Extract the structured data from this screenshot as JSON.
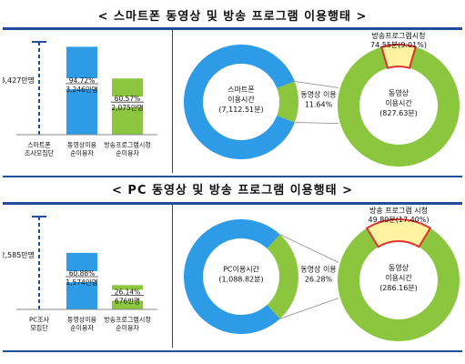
{
  "sections": [
    {
      "title": "< 스마트폰 동영상 및 방송 프로그램 이용행태 >",
      "bar_chart": {
        "total_label": "3,427만명",
        "categories": [
          "스마트폰\n조사모집단",
          "동영상이용\n순이용자",
          "방송프로그램시청\n순이용자"
        ],
        "bars": [
          {
            "pct": "94.72%",
            "count": "3,246만명"
          },
          {
            "pct": "60.57%",
            "count": "2,075만명"
          }
        ]
      },
      "donut": {
        "big_label": "스마트폰\n이용시간\n(7,112.51분)",
        "video_label": "동영상 이용\n11.64%",
        "small_label": "동영상\n이용시간\n(827.63분)",
        "broadcast_label": "방송프로그램시청\n74.55분(9.01%)"
      }
    },
    {
      "title": "< PC 동영상 및 방송 프로그램 이용행태 >",
      "bar_chart": {
        "total_label": "2,585만명",
        "categories": [
          "PC조사\n모집단",
          "동영상이용\n순이용자",
          "방송프로그램시청\n순이용자"
        ],
        "bars": [
          {
            "pct": "60.88%",
            "count": "1,574만명"
          },
          {
            "pct": "26.14%",
            "count": "676만명"
          }
        ]
      },
      "donut": {
        "big_label": "PC이용시간\n(1,088.82분)",
        "video_label": "동영상 이용\n26.28%",
        "small_label": "동영상\n이용시간\n(286.16분)",
        "broadcast_label": "방송 프로그램 시청\n49.80분(17.40%)"
      }
    }
  ],
  "chart_data": [
    {
      "type": "bar",
      "categories": [
        "스마트폰 조사모집단",
        "동영상이용 순이용자",
        "방송프로그램시청 순이용자"
      ],
      "values": [
        3427,
        3246,
        2075
      ],
      "shares": [
        100,
        94.72,
        60.57
      ]
    },
    {
      "type": "pie",
      "labels": [
        "스마트폰 이용시간",
        "동영상 이용"
      ],
      "total": 7112.51,
      "values": [
        88.36,
        11.64
      ]
    },
    {
      "type": "pie",
      "labels": [
        "동영상 이용시간",
        "방송프로그램시청"
      ],
      "total": 827.63,
      "values": [
        90.99,
        9.01
      ],
      "broadcast_minutes": 74.55
    },
    {
      "type": "bar",
      "categories": [
        "PC조사 모집단",
        "동영상이용 순이용자",
        "방송프로그램시청 순이용자"
      ],
      "values": [
        2585,
        1574,
        676
      ],
      "shares": [
        100,
        60.88,
        26.14
      ]
    },
    {
      "type": "pie",
      "labels": [
        "PC이용시간",
        "동영상 이용"
      ],
      "total": 1088.82,
      "values": [
        73.72,
        26.28
      ]
    },
    {
      "type": "pie",
      "labels": [
        "동영상 이용시간",
        "방송 프로그램 시청"
      ],
      "total": 286.16,
      "values": [
        82.6,
        17.4
      ],
      "broadcast_minutes": 49.8
    }
  ],
  "colors": {
    "blue": "#2e9be6",
    "green": "#8cc63f",
    "red": "#e03030",
    "yellow": "#fff3a0",
    "navy": "#1f4e9a"
  }
}
